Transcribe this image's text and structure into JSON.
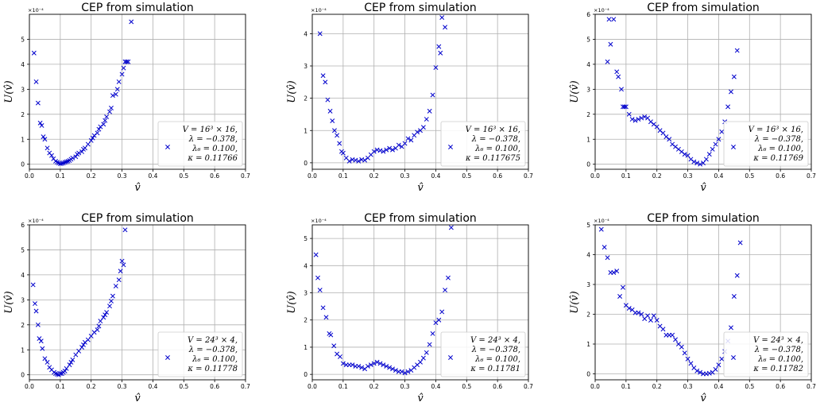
{
  "figure": {
    "background": "#ffffff",
    "marker_color": "#0000cc",
    "grid_color": "#b0b0b0"
  },
  "chart_data": [
    {
      "type": "scatter",
      "title": "CEP from simulation",
      "xlabel": "v̂",
      "ylabel": "U(v̂)",
      "xlim": [
        0,
        0.7
      ],
      "ylim": [
        -0.2,
        6.0
      ],
      "x_ticks": [
        "0.0",
        "0.1",
        "0.2",
        "0.3",
        "0.4",
        "0.5",
        "0.6",
        "0.7"
      ],
      "y_ticks": [
        "0",
        "1",
        "2",
        "3",
        "4",
        "5"
      ],
      "y_scale_label": "×10⁻⁴",
      "legend_lines": [
        "V = 16³ × 16,",
        "λ = −0.378,",
        "λ₆ = 0.100,",
        "κ = 0.11766"
      ],
      "grid": true,
      "legend": "lower-right",
      "series": [
        {
          "x": [
            0.015,
            0.022,
            0.028,
            0.035,
            0.04,
            0.045,
            0.05,
            0.058,
            0.065,
            0.072,
            0.078,
            0.085,
            0.09,
            0.095,
            0.1,
            0.105,
            0.11,
            0.115,
            0.12,
            0.125,
            0.13,
            0.135,
            0.14,
            0.15,
            0.155,
            0.16,
            0.17,
            0.175,
            0.18,
            0.19,
            0.2,
            0.205,
            0.21,
            0.22,
            0.225,
            0.23,
            0.24,
            0.245,
            0.25,
            0.26,
            0.265,
            0.27,
            0.28,
            0.285,
            0.29,
            0.3,
            0.305,
            0.31,
            0.315,
            0.32,
            0.33
          ],
          "y": [
            4.45,
            3.3,
            2.45,
            1.65,
            1.55,
            1.1,
            1.0,
            0.65,
            0.45,
            0.35,
            0.22,
            0.12,
            0.08,
            0.05,
            0.02,
            0.03,
            0.05,
            0.08,
            0.1,
            0.12,
            0.15,
            0.2,
            0.25,
            0.3,
            0.4,
            0.45,
            0.5,
            0.6,
            0.65,
            0.8,
            0.95,
            1.05,
            1.15,
            1.25,
            1.4,
            1.5,
            1.6,
            1.75,
            1.9,
            2.1,
            2.25,
            2.75,
            2.8,
            3.0,
            3.3,
            3.6,
            3.85,
            4.1,
            4.1,
            4.1,
            5.7
          ]
        }
      ]
    },
    {
      "type": "scatter",
      "title": "CEP from simulation",
      "xlabel": "v̂",
      "ylabel": "U(v̂)",
      "xlim": [
        0,
        0.7
      ],
      "ylim": [
        -0.2,
        4.6
      ],
      "x_ticks": [
        "0.0",
        "0.1",
        "0.2",
        "0.3",
        "0.4",
        "0.5",
        "0.6",
        "0.7"
      ],
      "y_ticks": [
        "0",
        "1",
        "2",
        "3",
        "4"
      ],
      "y_scale_label": "×10⁻⁴",
      "legend_lines": [
        "V = 16³ × 16,",
        "λ = −0.378,",
        "λ₆ = 0.100,",
        "κ = 0.117675"
      ],
      "grid": true,
      "legend": "lower-right",
      "series": [
        {
          "x": [
            0.025,
            0.035,
            0.042,
            0.05,
            0.058,
            0.065,
            0.072,
            0.08,
            0.088,
            0.095,
            0.1,
            0.11,
            0.12,
            0.13,
            0.14,
            0.15,
            0.16,
            0.17,
            0.18,
            0.19,
            0.2,
            0.21,
            0.22,
            0.23,
            0.24,
            0.25,
            0.26,
            0.27,
            0.28,
            0.29,
            0.3,
            0.31,
            0.32,
            0.33,
            0.34,
            0.35,
            0.36,
            0.37,
            0.38,
            0.39,
            0.4,
            0.41,
            0.415,
            0.42,
            0.43
          ],
          "y": [
            4.0,
            2.7,
            2.5,
            1.95,
            1.6,
            1.3,
            1.0,
            0.85,
            0.6,
            0.35,
            0.3,
            0.15,
            0.05,
            0.1,
            0.08,
            0.05,
            0.1,
            0.08,
            0.15,
            0.25,
            0.35,
            0.4,
            0.38,
            0.35,
            0.4,
            0.45,
            0.4,
            0.45,
            0.55,
            0.5,
            0.6,
            0.75,
            0.7,
            0.85,
            0.95,
            1.0,
            1.1,
            1.35,
            1.6,
            2.1,
            2.95,
            3.6,
            3.4,
            4.5,
            4.2
          ]
        }
      ]
    },
    {
      "type": "scatter",
      "title": "CEP from simulation",
      "xlabel": "v̂",
      "ylabel": "U(v̂)",
      "xlim": [
        0,
        0.7
      ],
      "ylim": [
        -0.2,
        6.0
      ],
      "x_ticks": [
        "0.0",
        "0.1",
        "0.2",
        "0.3",
        "0.4",
        "0.5",
        "0.6",
        "0.7"
      ],
      "y_ticks": [
        "0",
        "1",
        "2",
        "3",
        "4",
        "5",
        "6"
      ],
      "y_scale_label": "×10⁻⁴",
      "legend_lines": [
        "V = 16³ × 16,",
        "λ = −0.378,",
        "λ₆ = 0.100,",
        "κ = 0.11769"
      ],
      "grid": true,
      "legend": "lower-right",
      "series": [
        {
          "x": [
            0.04,
            0.045,
            0.05,
            0.06,
            0.07,
            0.075,
            0.085,
            0.09,
            0.095,
            0.1,
            0.11,
            0.12,
            0.13,
            0.14,
            0.15,
            0.16,
            0.17,
            0.18,
            0.19,
            0.2,
            0.21,
            0.22,
            0.23,
            0.24,
            0.25,
            0.26,
            0.27,
            0.28,
            0.29,
            0.3,
            0.31,
            0.32,
            0.33,
            0.34,
            0.35,
            0.36,
            0.37,
            0.38,
            0.39,
            0.4,
            0.41,
            0.42,
            0.43,
            0.44,
            0.45,
            0.46
          ],
          "y": [
            4.1,
            5.8,
            4.8,
            5.8,
            3.7,
            3.5,
            3.0,
            2.3,
            2.3,
            2.3,
            2.0,
            1.8,
            1.75,
            1.8,
            1.85,
            1.9,
            1.85,
            1.7,
            1.6,
            1.5,
            1.35,
            1.25,
            1.1,
            1.0,
            0.8,
            0.7,
            0.6,
            0.5,
            0.4,
            0.35,
            0.2,
            0.1,
            0.05,
            0.0,
            0.05,
            0.2,
            0.4,
            0.6,
            0.8,
            1.0,
            1.3,
            1.7,
            2.3,
            2.9,
            3.5,
            4.55
          ]
        }
      ]
    },
    {
      "type": "scatter",
      "title": "CEP from simulation",
      "xlabel": "v̂",
      "ylabel": "U(v̂)",
      "xlim": [
        0,
        0.7
      ],
      "ylim": [
        -0.2,
        6.0
      ],
      "x_ticks": [
        "0.0",
        "0.1",
        "0.2",
        "0.3",
        "0.4",
        "0.5",
        "0.6",
        "0.7"
      ],
      "y_ticks": [
        "0",
        "1",
        "2",
        "3",
        "4",
        "5",
        "6"
      ],
      "y_scale_label": "×10⁻⁴",
      "legend_lines": [
        "V = 24³ × 4,",
        "λ = −0.378,",
        "λ₆ = 0.100,",
        "κ = 0.11778"
      ],
      "grid": true,
      "legend": "lower-right",
      "series": [
        {
          "x": [
            0.012,
            0.018,
            0.022,
            0.028,
            0.032,
            0.038,
            0.042,
            0.05,
            0.058,
            0.065,
            0.072,
            0.08,
            0.085,
            0.09,
            0.095,
            0.1,
            0.105,
            0.11,
            0.115,
            0.12,
            0.13,
            0.135,
            0.14,
            0.15,
            0.16,
            0.17,
            0.175,
            0.18,
            0.19,
            0.2,
            0.21,
            0.22,
            0.225,
            0.23,
            0.24,
            0.245,
            0.25,
            0.26,
            0.265,
            0.27,
            0.28,
            0.29,
            0.295,
            0.3,
            0.305,
            0.31
          ],
          "y": [
            3.6,
            2.85,
            2.55,
            2.0,
            1.45,
            1.35,
            1.05,
            0.65,
            0.5,
            0.3,
            0.2,
            0.1,
            0.05,
            0.02,
            0.0,
            0.05,
            0.05,
            0.1,
            0.15,
            0.25,
            0.4,
            0.5,
            0.6,
            0.8,
            0.95,
            1.1,
            1.2,
            1.3,
            1.4,
            1.55,
            1.7,
            1.8,
            1.95,
            2.15,
            2.3,
            2.4,
            2.5,
            2.75,
            2.95,
            3.15,
            3.55,
            3.8,
            4.15,
            4.55,
            4.4,
            5.8
          ]
        }
      ]
    },
    {
      "type": "scatter",
      "title": "CEP from simulation",
      "xlabel": "v̂",
      "ylabel": "U(v̂)",
      "xlim": [
        0,
        0.7
      ],
      "ylim": [
        -0.2,
        5.5
      ],
      "x_ticks": [
        "0.0",
        "0.1",
        "0.2",
        "0.3",
        "0.4",
        "0.5",
        "0.6",
        "0.7"
      ],
      "y_ticks": [
        "0",
        "1",
        "2",
        "3",
        "4",
        "5"
      ],
      "y_scale_label": "×10⁻⁴",
      "legend_lines": [
        "V = 24³ × 4,",
        "λ = −0.378,",
        "λ₆ = 0.100,",
        "κ = 0.11781"
      ],
      "grid": true,
      "legend": "lower-right",
      "series": [
        {
          "x": [
            0.012,
            0.018,
            0.025,
            0.035,
            0.045,
            0.055,
            0.06,
            0.07,
            0.08,
            0.09,
            0.1,
            0.11,
            0.12,
            0.13,
            0.14,
            0.15,
            0.16,
            0.17,
            0.18,
            0.19,
            0.2,
            0.21,
            0.22,
            0.23,
            0.24,
            0.25,
            0.26,
            0.27,
            0.28,
            0.29,
            0.3,
            0.31,
            0.32,
            0.33,
            0.34,
            0.35,
            0.36,
            0.37,
            0.38,
            0.39,
            0.4,
            0.41,
            0.42,
            0.43,
            0.44,
            0.45
          ],
          "y": [
            4.4,
            3.55,
            3.1,
            2.45,
            2.1,
            1.5,
            1.45,
            1.05,
            0.75,
            0.65,
            0.4,
            0.35,
            0.35,
            0.35,
            0.3,
            0.3,
            0.25,
            0.2,
            0.3,
            0.35,
            0.4,
            0.45,
            0.4,
            0.35,
            0.3,
            0.25,
            0.2,
            0.15,
            0.1,
            0.1,
            0.05,
            0.1,
            0.15,
            0.25,
            0.35,
            0.45,
            0.6,
            0.8,
            1.1,
            1.5,
            1.9,
            2.0,
            2.3,
            3.1,
            3.55,
            5.4
          ]
        }
      ]
    },
    {
      "type": "scatter",
      "title": "CEP from simulation",
      "xlabel": "v̂",
      "ylabel": "U(v̂)",
      "xlim": [
        0,
        0.7
      ],
      "ylim": [
        -0.2,
        5.0
      ],
      "x_ticks": [
        "0.0",
        "0.1",
        "0.2",
        "0.3",
        "0.4",
        "0.5",
        "0.6",
        "0.7"
      ],
      "y_ticks": [
        "0",
        "1",
        "2",
        "3",
        "4",
        "5"
      ],
      "y_scale_label": "×10⁻⁴",
      "legend_lines": [
        "V = 24³ × 4,",
        "λ = −0.378,",
        "λ₆ = 0.100,",
        "κ = 0.11782"
      ],
      "grid": true,
      "legend": "lower-right",
      "series": [
        {
          "x": [
            0.02,
            0.03,
            0.04,
            0.05,
            0.06,
            0.07,
            0.08,
            0.09,
            0.1,
            0.11,
            0.12,
            0.13,
            0.14,
            0.15,
            0.16,
            0.17,
            0.18,
            0.19,
            0.2,
            0.21,
            0.22,
            0.23,
            0.24,
            0.25,
            0.26,
            0.27,
            0.28,
            0.29,
            0.3,
            0.31,
            0.32,
            0.33,
            0.34,
            0.35,
            0.36,
            0.37,
            0.38,
            0.39,
            0.4,
            0.41,
            0.42,
            0.43,
            0.44,
            0.45,
            0.46,
            0.47
          ],
          "y": [
            4.85,
            4.25,
            3.9,
            3.4,
            3.4,
            3.45,
            2.6,
            2.9,
            2.3,
            2.2,
            2.15,
            2.05,
            2.05,
            2.0,
            1.85,
            1.95,
            1.8,
            1.95,
            1.8,
            1.6,
            1.5,
            1.3,
            1.3,
            1.3,
            1.15,
            1.0,
            0.9,
            0.7,
            0.5,
            0.35,
            0.2,
            0.1,
            0.05,
            0.0,
            0.0,
            0.02,
            0.05,
            0.15,
            0.3,
            0.5,
            0.75,
            1.1,
            1.55,
            2.6,
            3.3,
            4.4
          ]
        }
      ]
    }
  ]
}
